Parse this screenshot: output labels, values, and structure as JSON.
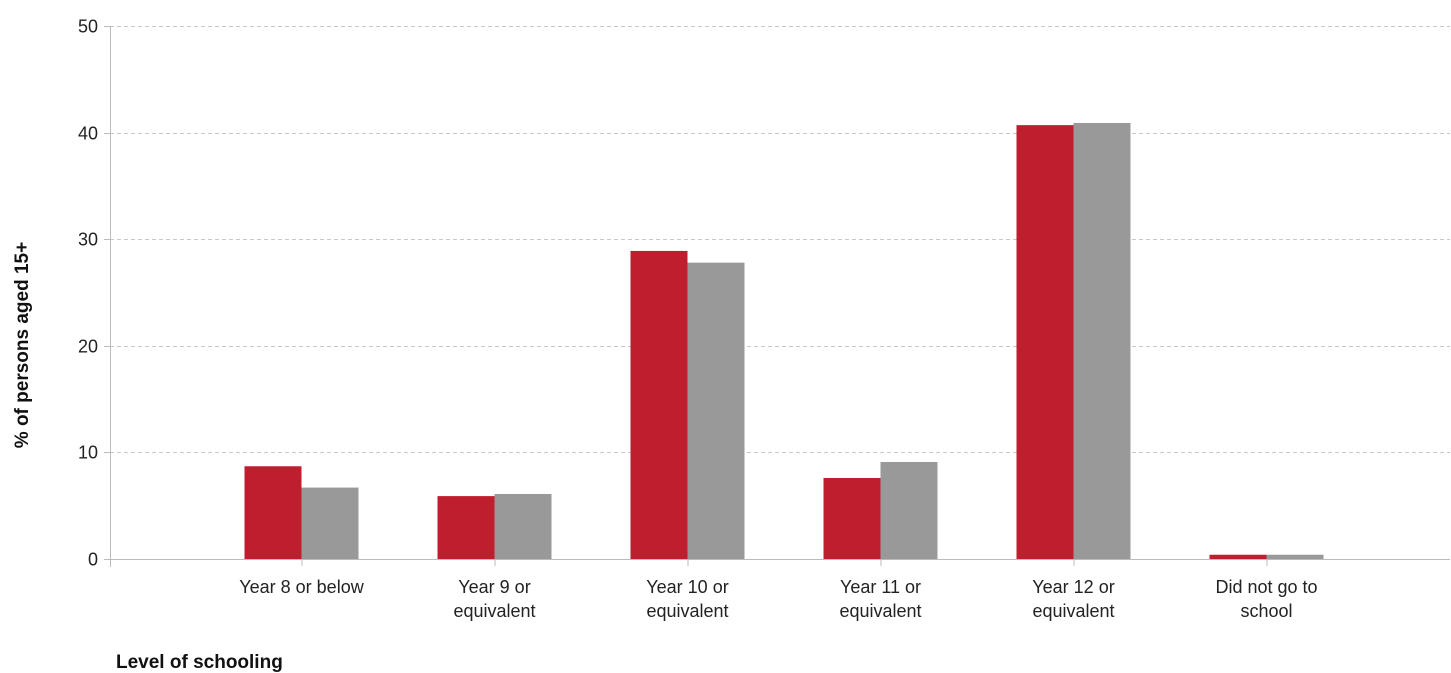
{
  "chart_data": {
    "type": "bar",
    "title": "",
    "xlabel": "Level of schooling",
    "ylabel": "% of persons aged 15+",
    "ylim": [
      0,
      50
    ],
    "yticks": [
      0,
      10,
      20,
      30,
      40,
      50
    ],
    "grid": true,
    "legend": "none",
    "categories": [
      "Year 8 or below",
      "Year 9 or equivalent",
      "Year 10 or equivalent",
      "Year 11 or equivalent",
      "Year 12 or equivalent",
      "Did not go to school"
    ],
    "category_lines": [
      [
        "Year 8 or below"
      ],
      [
        "Year 9 or",
        "equivalent"
      ],
      [
        "Year 10 or",
        "equivalent"
      ],
      [
        "Year 11 or",
        "equivalent"
      ],
      [
        "Year 12 or",
        "equivalent"
      ],
      [
        "Did not go to",
        "school"
      ]
    ],
    "series": [
      {
        "color": "#be1e2d",
        "values": [
          8.7,
          5.9,
          28.9,
          7.6,
          40.7,
          0.4
        ]
      },
      {
        "color": "#999999",
        "values": [
          6.7,
          6.1,
          27.8,
          9.1,
          40.9,
          0.4
        ]
      }
    ],
    "colors": {
      "grid": "#c8c8c8",
      "axis": "#bbbbbb"
    }
  }
}
